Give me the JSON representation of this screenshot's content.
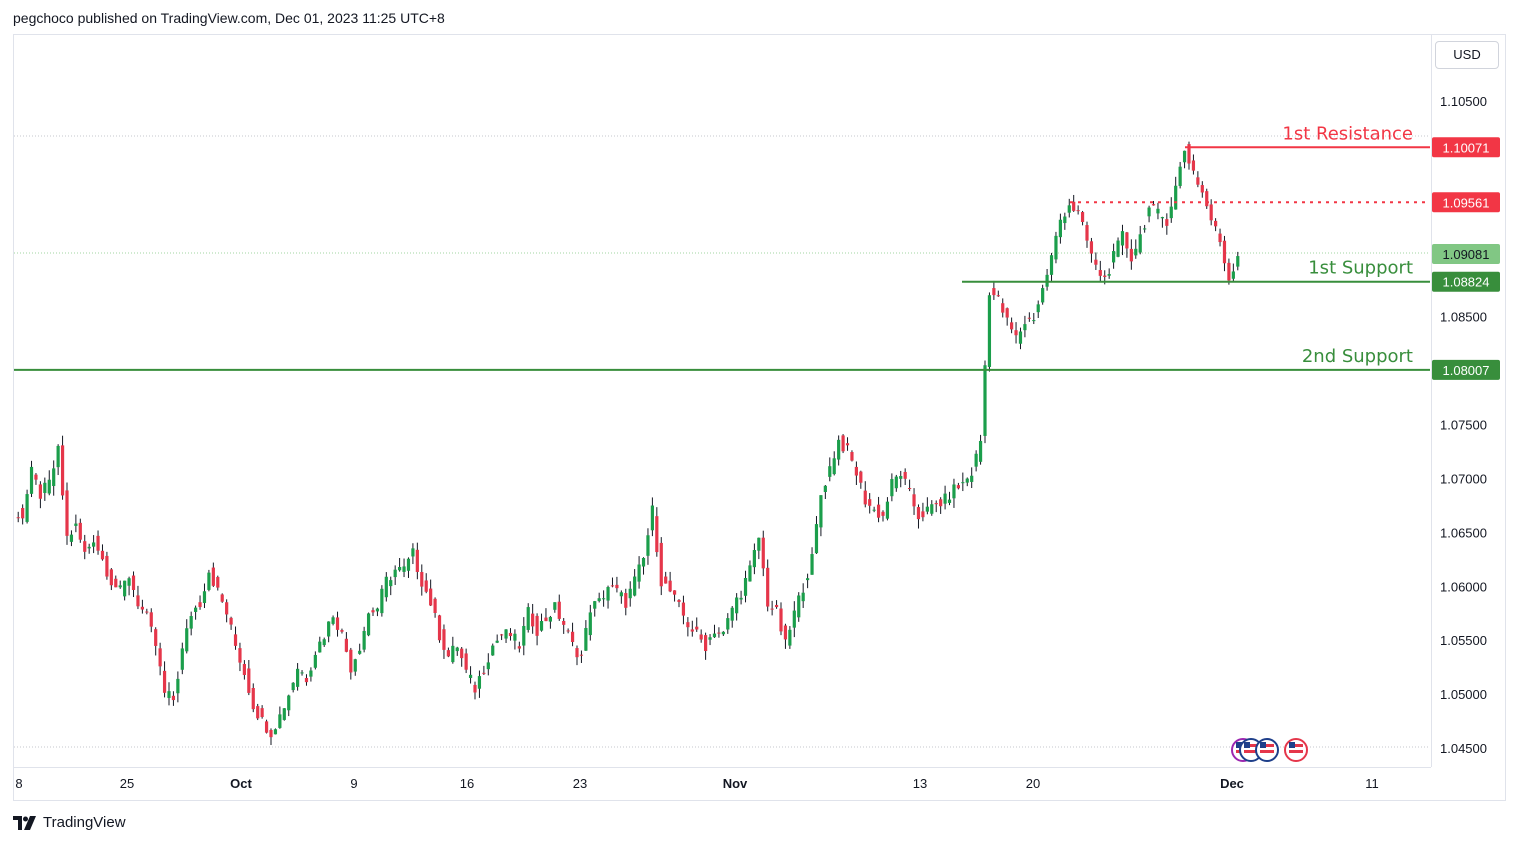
{
  "header": {
    "text": "pegchoco published on TradingView.com, Dec 01, 2023 11:25 UTC+8"
  },
  "currency": "USD",
  "footer": {
    "brand": "TradingView"
  },
  "colors": {
    "up": "#26a69a",
    "up_body": "#1b9e4b",
    "down": "#e5364a",
    "resistance": "#f23645",
    "support": "#388e3c",
    "current_bg": "#81c784"
  },
  "chart_data": {
    "type": "candlestick",
    "symbol_hint": "EURUSD",
    "ylim": [
      1.044,
      1.1085
    ],
    "y_ticks": [
      "1.10500",
      "1.08500",
      "1.07500",
      "1.07000",
      "1.06500",
      "1.06000",
      "1.05500",
      "1.05000",
      "1.04500"
    ],
    "x_ticks": [
      "8",
      "25",
      "Oct",
      "9",
      "16",
      "23",
      "Nov",
      "13",
      "20",
      "Dec",
      "11"
    ],
    "levels": [
      {
        "name": "1st Resistance",
        "label": "1st Resistance",
        "value": 1.10071,
        "tag": "1.10071",
        "style": "solid",
        "color": "#f23645"
      },
      {
        "name": "mid",
        "label": "",
        "value": 1.09561,
        "tag": "1.09561",
        "style": "dotted",
        "color": "#f23645"
      },
      {
        "name": "1st Support",
        "label": "1st Support",
        "value": 1.08824,
        "tag": "1.08824",
        "style": "solid",
        "color": "#388e3c"
      },
      {
        "name": "2nd Support",
        "label": "2nd Support",
        "value": 1.08007,
        "tag": "1.08007",
        "style": "solid",
        "color": "#388e3c"
      }
    ],
    "current_price": {
      "value": 1.09081,
      "tag": "1.09081"
    },
    "close_path": [
      1.067,
      1.0665,
      1.0705,
      1.0685,
      1.0695,
      1.0725,
      1.0645,
      1.0655,
      1.063,
      1.0645,
      1.0625,
      1.0605,
      1.0595,
      1.061,
      1.0585,
      1.057,
      1.0545,
      1.05,
      1.0495,
      1.054,
      1.0575,
      1.0585,
      1.0615,
      1.0595,
      1.0575,
      1.0545,
      1.052,
      1.049,
      1.0475,
      1.0465,
      1.048,
      1.05,
      1.0525,
      1.0515,
      1.054,
      1.0555,
      1.0575,
      1.0555,
      1.0525,
      1.0545,
      1.0575,
      1.058,
      1.0605,
      1.0615,
      1.0615,
      1.063,
      1.0605,
      1.0585,
      1.0555,
      1.0535,
      1.0545,
      1.052,
      1.0505,
      1.0525,
      1.0545,
      1.0555,
      1.0555,
      1.0545,
      1.0575,
      1.056,
      1.057,
      1.058,
      1.0565,
      1.0545,
      1.0535,
      1.058,
      1.0585,
      1.06,
      1.0595,
      1.0585,
      1.0605,
      1.0625,
      1.067,
      1.0605,
      1.0595,
      1.058,
      1.0565,
      1.0555,
      1.0545,
      1.056,
      1.0555,
      1.058,
      1.0595,
      1.0615,
      1.0645,
      1.0585,
      1.0575,
      1.0545,
      1.0575,
      1.06,
      1.0625,
      1.0685,
      1.071,
      1.0735,
      1.0725,
      1.0705,
      1.068,
      1.067,
      1.0665,
      1.0695,
      1.0705,
      1.0685,
      1.0665,
      1.067,
      1.0675,
      1.068,
      1.069,
      1.0695,
      1.0705,
      1.0735,
      1.0875,
      1.0865,
      1.0845,
      1.083,
      1.0845,
      1.085,
      1.0875,
      1.0905,
      1.094,
      1.0955,
      1.0945,
      1.092,
      1.0895,
      1.0885,
      1.0905,
      1.0925,
      1.0905,
      1.0925,
      1.095,
      1.0945,
      1.094,
      1.097,
      1.1005,
      1.0985,
      1.0965,
      1.094,
      1.092,
      1.0885,
      1.0908
    ]
  }
}
